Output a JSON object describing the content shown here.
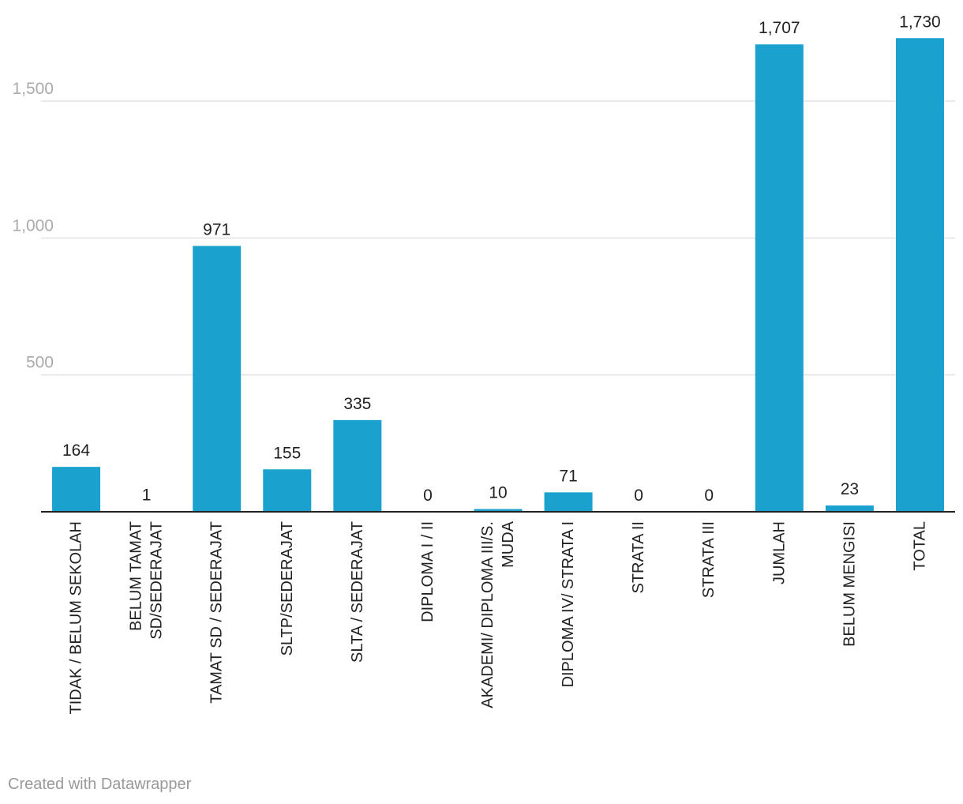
{
  "chart_data": {
    "type": "bar",
    "title": "",
    "xlabel": "",
    "ylabel": "",
    "ylim": [
      0,
      1500
    ],
    "yticks": [
      500,
      1000,
      1500
    ],
    "ytick_labels": [
      "500",
      "1,000",
      "1,500"
    ],
    "grid": true,
    "legend": "none",
    "bar_color": "#1aa1cd",
    "categories": [
      [
        "TIDAK / BELUM SEKOLAH"
      ],
      [
        "BELUM TAMAT",
        "SD/SEDERAJAT"
      ],
      [
        "TAMAT SD / SEDERAJAT"
      ],
      [
        "SLTP/SEDERAJAT"
      ],
      [
        "SLTA / SEDERAJAT"
      ],
      [
        "DIPLOMA I / II"
      ],
      [
        "AKADEMI/ DIPLOMA III/S.",
        "MUDA"
      ],
      [
        "DIPLOMA IV/ STRATA I"
      ],
      [
        "STRATA II"
      ],
      [
        "STRATA III"
      ],
      [
        "JUMLAH"
      ],
      [
        "BELUM MENGISI"
      ],
      [
        "TOTAL"
      ]
    ],
    "values": [
      164,
      1,
      971,
      155,
      335,
      0,
      10,
      71,
      0,
      0,
      1707,
      23,
      1730
    ],
    "value_labels": [
      "164",
      "1",
      "971",
      "155",
      "335",
      "0",
      "10",
      "71",
      "0",
      "0",
      "1,707",
      "23",
      "1,730"
    ]
  },
  "footer": {
    "credit": "Created with Datawrapper"
  }
}
